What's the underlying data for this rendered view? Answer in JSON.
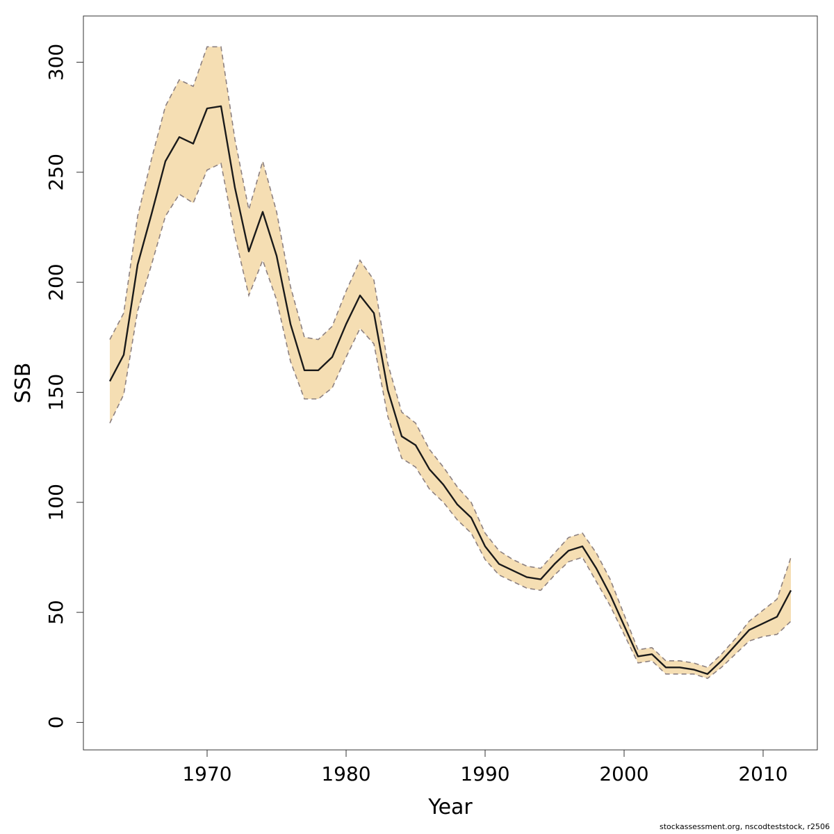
{
  "chart_data": {
    "type": "line",
    "title": "",
    "xlabel": "Year",
    "ylabel": "SSB",
    "xlim": [
      1961.1,
      2013.9
    ],
    "ylim": [
      -12.5,
      321
    ],
    "x_ticks": [
      1970,
      1980,
      1990,
      2000,
      2010
    ],
    "y_ticks": [
      0,
      50,
      100,
      150,
      200,
      250,
      300
    ],
    "grid": false,
    "legend": "none",
    "x": [
      1963,
      1964,
      1965,
      1966,
      1967,
      1968,
      1969,
      1970,
      1971,
      1972,
      1973,
      1974,
      1975,
      1976,
      1977,
      1978,
      1979,
      1980,
      1981,
      1982,
      1983,
      1984,
      1985,
      1986,
      1987,
      1988,
      1989,
      1990,
      1991,
      1992,
      1993,
      1994,
      1995,
      1996,
      1997,
      1998,
      1999,
      2000,
      2001,
      2002,
      2003,
      2004,
      2005,
      2006,
      2007,
      2008,
      2009,
      2010,
      2011,
      2012
    ],
    "series": [
      {
        "role": "estimate",
        "values": [
          155,
          167,
          208,
          231,
          255,
          266,
          263,
          279,
          280,
          243,
          214,
          232,
          212,
          181,
          160,
          160,
          166,
          181,
          194,
          186,
          151,
          130,
          126,
          115,
          108,
          99,
          93,
          80,
          72,
          69,
          66,
          65,
          72,
          78,
          80,
          70,
          58,
          44,
          30,
          31,
          25,
          25,
          24,
          22,
          28,
          35,
          42,
          45,
          48,
          60
        ]
      },
      {
        "role": "upper",
        "values": [
          174,
          186,
          230,
          256,
          280,
          292,
          289,
          307,
          307,
          265,
          233,
          255,
          232,
          198,
          175,
          174,
          180,
          196,
          210,
          201,
          163,
          141,
          136,
          124,
          116,
          107,
          100,
          86,
          78,
          74,
          71,
          70,
          77,
          84,
          86,
          77,
          65,
          49,
          33,
          34,
          28,
          28,
          27,
          25,
          31,
          38,
          46,
          51,
          56,
          75
        ]
      },
      {
        "role": "lower",
        "values": [
          136,
          149,
          187,
          208,
          230,
          240,
          236,
          251,
          254,
          221,
          194,
          210,
          192,
          164,
          147,
          147,
          152,
          166,
          179,
          172,
          139,
          120,
          116,
          106,
          100,
          92,
          86,
          74,
          67,
          64,
          61,
          60,
          67,
          73,
          75,
          64,
          53,
          40,
          27,
          28,
          22,
          22,
          22,
          20,
          25,
          31,
          37,
          39,
          40,
          46
        ]
      }
    ],
    "colors": {
      "band_fill": "#f5deb3",
      "band_edge": "#8c8080",
      "line": "#1a1a1a",
      "axis": "#333333"
    }
  },
  "footer": {
    "credit": "stockassessment.org, nscodteststock, r2506"
  }
}
